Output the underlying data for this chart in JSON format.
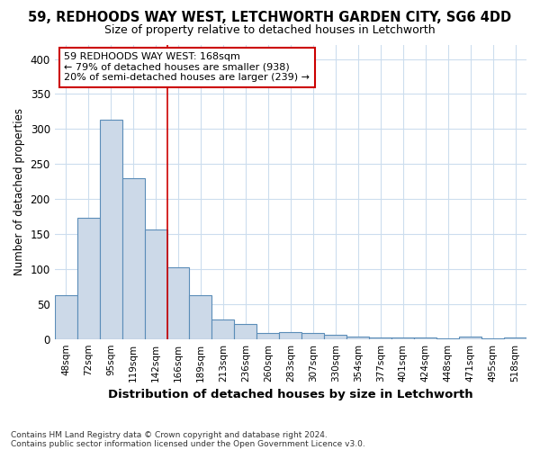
{
  "title1": "59, REDHOODS WAY WEST, LETCHWORTH GARDEN CITY, SG6 4DD",
  "title2": "Size of property relative to detached houses in Letchworth",
  "xlabel": "Distribution of detached houses by size in Letchworth",
  "ylabel": "Number of detached properties",
  "footnote1": "Contains HM Land Registry data © Crown copyright and database right 2024.",
  "footnote2": "Contains public sector information licensed under the Open Government Licence v3.0.",
  "bar_labels": [
    "48sqm",
    "72sqm",
    "95sqm",
    "119sqm",
    "142sqm",
    "166sqm",
    "189sqm",
    "213sqm",
    "236sqm",
    "260sqm",
    "283sqm",
    "307sqm",
    "330sqm",
    "354sqm",
    "377sqm",
    "401sqm",
    "424sqm",
    "448sqm",
    "471sqm",
    "495sqm",
    "518sqm"
  ],
  "bar_values": [
    63,
    173,
    313,
    230,
    157,
    103,
    62,
    28,
    21,
    9,
    10,
    8,
    6,
    4,
    2,
    2,
    2,
    1,
    3,
    1,
    2
  ],
  "bar_color": "#ccd9e8",
  "bar_edge_color": "#5b8db8",
  "annotation_line1": "59 REDHOODS WAY WEST: 168sqm",
  "annotation_line2": "← 79% of detached houses are smaller (938)",
  "annotation_line3": "20% of semi-detached houses are larger (239) →",
  "annotation_box_color": "#ffffff",
  "annotation_box_edge_color": "#cc0000",
  "property_line_x": 4.5,
  "property_line_color": "#cc0000",
  "ylim": [
    0,
    420
  ],
  "yticks": [
    0,
    50,
    100,
    150,
    200,
    250,
    300,
    350,
    400
  ],
  "background_color": "#ffffff",
  "grid_color": "#ccddee",
  "title1_fontsize": 10.5,
  "title2_fontsize": 9.0
}
